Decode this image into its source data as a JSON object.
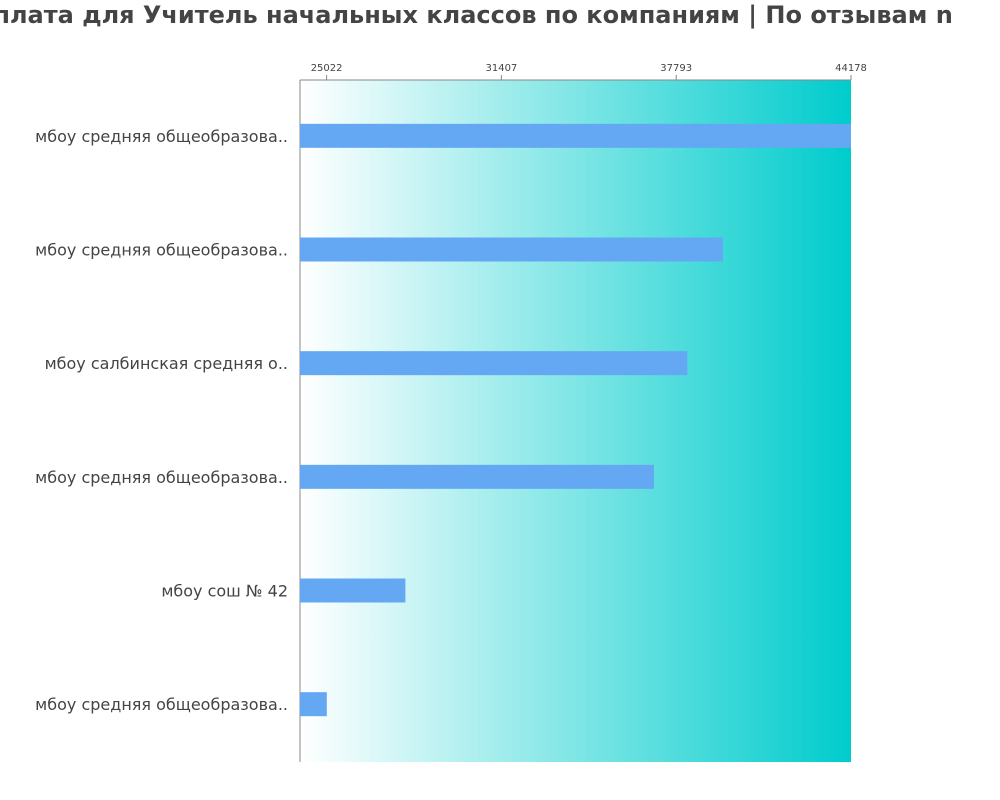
{
  "chart_data": {
    "type": "bar",
    "orientation": "horizontal",
    "title": "арплата для Учитель начальных классов по компаниям  | По отзывам n",
    "categories": [
      "мбоу средняя общеобразова..",
      "мбоу средняя общеобразова..",
      "мбоу салбинская средняя о..",
      "мбоу средняя общеобразова..",
      "мбоу сош № 42",
      "мбоу средняя общеобразова.."
    ],
    "values": [
      44178,
      39500,
      38200,
      36980,
      27900,
      25030
    ],
    "x_ticks": [
      25022,
      31407,
      37793,
      44178
    ],
    "xlim": [
      24050,
      44178
    ],
    "grid": false,
    "colors": {
      "bar": "#64a8f4",
      "background_start": "#ffffff",
      "background_end": "#00cccc",
      "axis": "#888888",
      "text": "#444444"
    }
  }
}
